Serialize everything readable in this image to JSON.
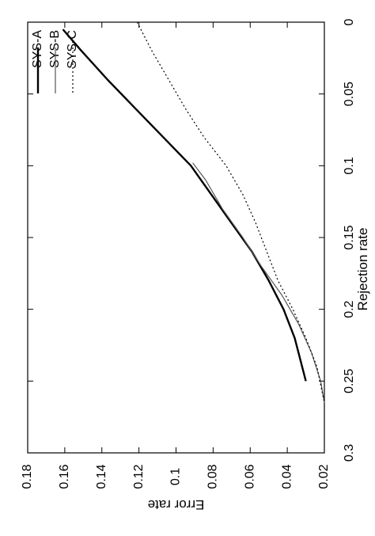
{
  "chart_data": {
    "type": "line",
    "orientation": "rotated-90-clockwise",
    "xlabel": "Rejection rate",
    "ylabel": "Error rate",
    "xlim": [
      0,
      0.3
    ],
    "ylim": [
      0.02,
      0.18
    ],
    "x_ticks": [
      "0",
      "0.05",
      "0.1",
      "0.15",
      "0.2",
      "0.25",
      "0.3"
    ],
    "y_ticks": [
      "0.02",
      "0.04",
      "0.06",
      "0.08",
      "0.1",
      "0.12",
      "0.14",
      "0.16",
      "0.18"
    ],
    "legend_position": "top-right",
    "grid": false,
    "series": [
      {
        "name": "SYS-A",
        "line_style": "solid-thick",
        "color": "#000000",
        "points": [
          [
            0.005,
            0.161
          ],
          [
            0.02,
            0.151
          ],
          [
            0.04,
            0.137
          ],
          [
            0.06,
            0.122
          ],
          [
            0.08,
            0.107
          ],
          [
            0.1,
            0.092
          ],
          [
            0.12,
            0.081
          ],
          [
            0.14,
            0.07
          ],
          [
            0.16,
            0.059
          ],
          [
            0.18,
            0.05
          ],
          [
            0.2,
            0.042
          ],
          [
            0.22,
            0.036
          ],
          [
            0.24,
            0.032
          ],
          [
            0.25,
            0.03
          ]
        ]
      },
      {
        "name": "SYS-B",
        "line_style": "solid-thin",
        "color": "#555555",
        "points": [
          [
            0.098,
            0.091
          ],
          [
            0.11,
            0.084
          ],
          [
            0.13,
            0.075
          ],
          [
            0.15,
            0.064
          ],
          [
            0.17,
            0.054
          ],
          [
            0.19,
            0.043
          ],
          [
            0.21,
            0.034
          ],
          [
            0.23,
            0.027
          ],
          [
            0.25,
            0.022
          ],
          [
            0.265,
            0.02
          ]
        ]
      },
      {
        "name": "SYS-C",
        "line_style": "dotted",
        "color": "#000000",
        "points": [
          [
            0.0,
            0.121
          ],
          [
            0.02,
            0.113
          ],
          [
            0.04,
            0.104
          ],
          [
            0.06,
            0.095
          ],
          [
            0.08,
            0.085
          ],
          [
            0.1,
            0.073
          ],
          [
            0.12,
            0.064
          ],
          [
            0.14,
            0.057
          ],
          [
            0.16,
            0.051
          ],
          [
            0.18,
            0.045
          ],
          [
            0.2,
            0.037
          ],
          [
            0.22,
            0.03
          ],
          [
            0.24,
            0.024
          ],
          [
            0.265,
            0.02
          ]
        ]
      }
    ]
  }
}
